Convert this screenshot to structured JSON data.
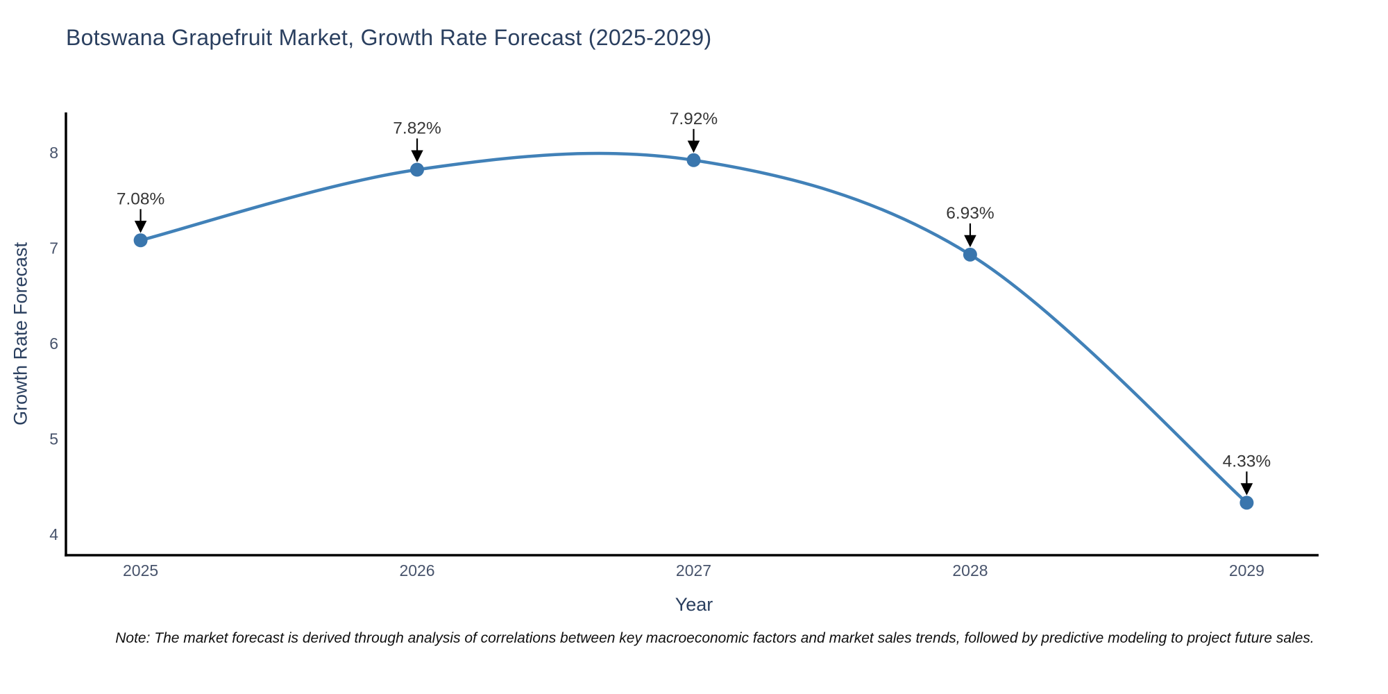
{
  "chart_data": {
    "type": "line",
    "title": "Botswana Grapefruit Market, Growth Rate Forecast (2025-2029)",
    "xlabel": "Year",
    "ylabel": "Growth Rate Forecast",
    "x": [
      2025,
      2026,
      2027,
      2028,
      2029
    ],
    "series": [
      {
        "name": "Growth Rate Forecast",
        "values": [
          7.08,
          7.82,
          7.92,
          6.93,
          4.33
        ]
      }
    ],
    "point_labels": [
      "7.08%",
      "7.82%",
      "7.92%",
      "6.93%",
      "4.33%"
    ],
    "yticks": [
      4,
      5,
      6,
      7,
      8
    ],
    "ylim": [
      3.78,
      8.42
    ],
    "xlim": [
      2024.73,
      2029.26
    ],
    "grid": false,
    "legend_position": "none",
    "line_shape": "spline",
    "marker_style": "circle",
    "annotation_arrows": true,
    "footnote": "Note: The market forecast is derived through analysis of correlations between key macroeconomic factors and market sales trends, followed by predictive modeling to project future sales.",
    "colors": {
      "line": "#4181b8",
      "marker": "#3a76ad",
      "arrow": "#000000",
      "axis": "#000000",
      "title": "#2a3f5f",
      "axis_title": "#2a3f5f",
      "tick": "#47536b",
      "annotation": "#363636",
      "note": "#0f0f0f"
    }
  }
}
